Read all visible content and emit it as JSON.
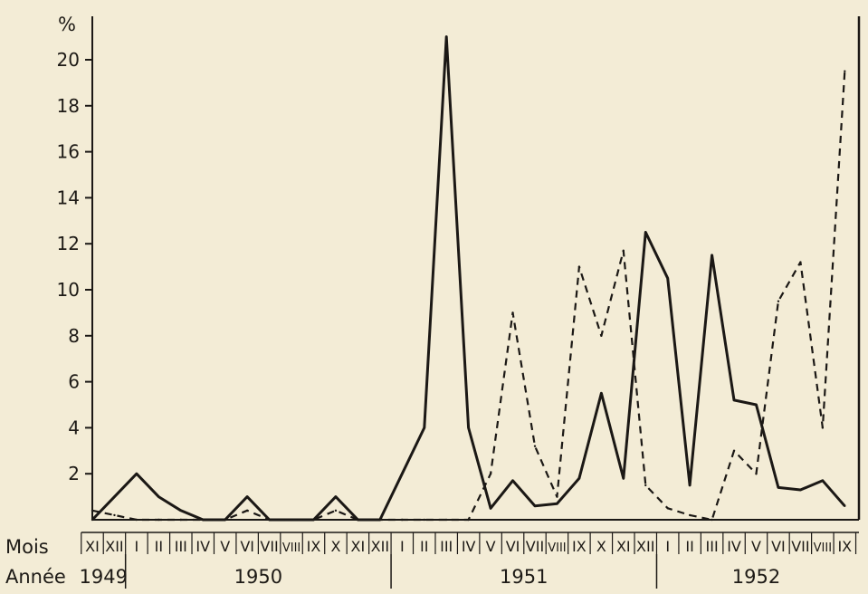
{
  "chart_data": {
    "type": "line",
    "ylabel": "%",
    "ylim": [
      0,
      22
    ],
    "yticks": [
      2,
      4,
      6,
      8,
      10,
      12,
      14,
      16,
      18,
      20
    ],
    "row_labels": {
      "month": "Mois",
      "year": "Année"
    },
    "months": [
      "XI",
      "XII",
      "I",
      "II",
      "III",
      "IV",
      "V",
      "VI",
      "VII",
      "VIII",
      "IX",
      "X",
      "XI",
      "XII",
      "I",
      "II",
      "III",
      "IV",
      "V",
      "VI",
      "VII",
      "VIII",
      "IX",
      "X",
      "XI",
      "XII",
      "I",
      "II",
      "III",
      "IV",
      "V",
      "VI",
      "VII",
      "VIII",
      "IX"
    ],
    "years": [
      {
        "label": "1949",
        "from": 0,
        "to": 1
      },
      {
        "label": "1950",
        "from": 2,
        "to": 13
      },
      {
        "label": "1951",
        "from": 14,
        "to": 25
      },
      {
        "label": "1952",
        "from": 26,
        "to": 34
      }
    ],
    "series": [
      {
        "style": "solid",
        "color": "#1b1815",
        "values": [
          0,
          1.0,
          2.0,
          1.0,
          0.4,
          0,
          0,
          1.0,
          0,
          0,
          0,
          1.0,
          0,
          0,
          2.0,
          4.0,
          21.0,
          4.0,
          0.5,
          1.7,
          0.6,
          0.7,
          1.8,
          5.5,
          1.8,
          12.5,
          10.5,
          1.5,
          11.5,
          5.2,
          5.0,
          1.4,
          1.3,
          1.7,
          0.6
        ]
      },
      {
        "style": "dashed",
        "color": "#1b1815",
        "values": [
          0.4,
          0.2,
          0,
          0,
          0,
          0,
          0,
          0.4,
          0,
          0,
          0,
          0.4,
          0,
          0,
          0,
          0,
          0,
          0,
          2.0,
          9.0,
          3.2,
          1.0,
          11.0,
          8.0,
          11.7,
          1.5,
          0.5,
          0.2,
          0,
          3.0,
          2.0,
          9.5,
          11.2,
          4.0,
          19.5
        ]
      }
    ],
    "grid": false
  }
}
